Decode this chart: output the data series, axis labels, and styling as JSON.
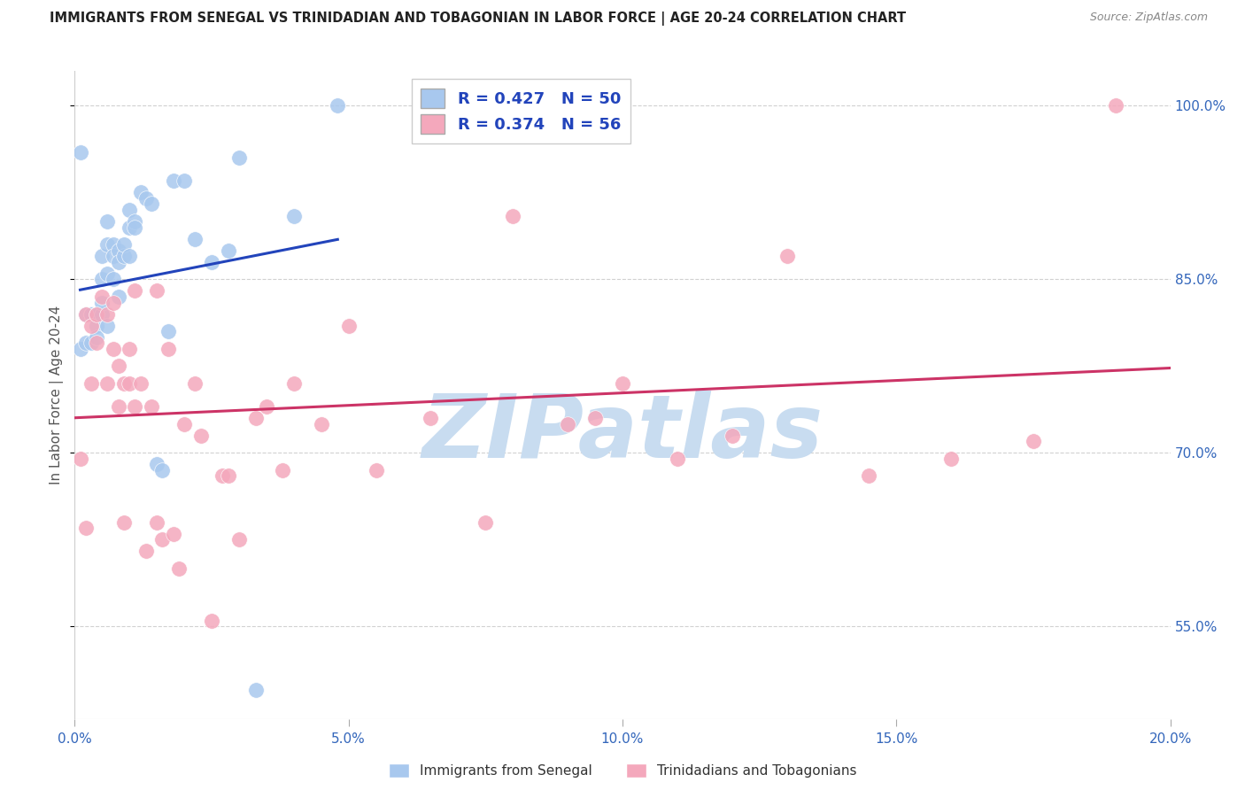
{
  "title": "IMMIGRANTS FROM SENEGAL VS TRINIDADIAN AND TOBAGONIAN IN LABOR FORCE | AGE 20-24 CORRELATION CHART",
  "source": "Source: ZipAtlas.com",
  "ylabel": "In Labor Force | Age 20-24",
  "legend_label_blue": "Immigrants from Senegal",
  "legend_label_pink": "Trinidadians and Tobagonians",
  "R_blue": 0.427,
  "N_blue": 50,
  "R_pink": 0.374,
  "N_pink": 56,
  "xlim": [
    0.0,
    0.2
  ],
  "ylim": [
    0.47,
    1.03
  ],
  "xticks": [
    0.0,
    0.05,
    0.1,
    0.15,
    0.2
  ],
  "yticks": [
    0.55,
    0.7,
    0.85,
    1.0
  ],
  "xticklabels": [
    "0.0%",
    "5.0%",
    "10.0%",
    "15.0%",
    "20.0%"
  ],
  "yticklabels": [
    "55.0%",
    "70.0%",
    "85.0%",
    "100.0%"
  ],
  "color_blue": "#A8C8EE",
  "color_pink": "#F4A8BC",
  "line_color_blue": "#2244BB",
  "line_color_pink": "#CC3366",
  "watermark_text": "ZIPatlas",
  "watermark_color": "#C8DCF0",
  "blue_x": [
    0.001,
    0.001,
    0.002,
    0.002,
    0.003,
    0.003,
    0.003,
    0.003,
    0.003,
    0.004,
    0.004,
    0.004,
    0.004,
    0.004,
    0.005,
    0.005,
    0.005,
    0.005,
    0.006,
    0.006,
    0.006,
    0.006,
    0.007,
    0.007,
    0.007,
    0.008,
    0.008,
    0.008,
    0.009,
    0.009,
    0.01,
    0.01,
    0.01,
    0.011,
    0.011,
    0.012,
    0.013,
    0.014,
    0.015,
    0.016,
    0.017,
    0.018,
    0.02,
    0.022,
    0.025,
    0.028,
    0.03,
    0.033,
    0.04,
    0.048
  ],
  "blue_y": [
    0.96,
    0.79,
    0.82,
    0.795,
    0.82,
    0.82,
    0.82,
    0.82,
    0.795,
    0.82,
    0.82,
    0.82,
    0.81,
    0.8,
    0.82,
    0.87,
    0.85,
    0.83,
    0.9,
    0.88,
    0.855,
    0.81,
    0.88,
    0.87,
    0.85,
    0.875,
    0.865,
    0.835,
    0.87,
    0.88,
    0.895,
    0.91,
    0.87,
    0.9,
    0.895,
    0.925,
    0.92,
    0.915,
    0.69,
    0.685,
    0.805,
    0.935,
    0.935,
    0.885,
    0.865,
    0.875,
    0.955,
    0.495,
    0.905,
    1.0
  ],
  "pink_x": [
    0.001,
    0.002,
    0.002,
    0.003,
    0.003,
    0.004,
    0.004,
    0.005,
    0.006,
    0.006,
    0.007,
    0.007,
    0.008,
    0.008,
    0.009,
    0.009,
    0.01,
    0.01,
    0.011,
    0.011,
    0.012,
    0.013,
    0.014,
    0.015,
    0.015,
    0.016,
    0.017,
    0.018,
    0.019,
    0.02,
    0.022,
    0.023,
    0.025,
    0.027,
    0.028,
    0.03,
    0.033,
    0.035,
    0.038,
    0.04,
    0.045,
    0.05,
    0.055,
    0.065,
    0.075,
    0.08,
    0.09,
    0.095,
    0.1,
    0.11,
    0.12,
    0.13,
    0.145,
    0.16,
    0.175,
    0.19
  ],
  "pink_y": [
    0.695,
    0.82,
    0.635,
    0.81,
    0.76,
    0.82,
    0.795,
    0.835,
    0.82,
    0.76,
    0.79,
    0.83,
    0.74,
    0.775,
    0.64,
    0.76,
    0.76,
    0.79,
    0.74,
    0.84,
    0.76,
    0.615,
    0.74,
    0.64,
    0.84,
    0.625,
    0.79,
    0.63,
    0.6,
    0.725,
    0.76,
    0.715,
    0.555,
    0.68,
    0.68,
    0.625,
    0.73,
    0.74,
    0.685,
    0.76,
    0.725,
    0.81,
    0.685,
    0.73,
    0.64,
    0.905,
    0.725,
    0.73,
    0.76,
    0.695,
    0.715,
    0.87,
    0.68,
    0.695,
    0.71,
    1.0
  ],
  "blue_line_x0": 0.001,
  "blue_line_x1": 0.048,
  "pink_line_x0": 0.0,
  "pink_line_x1": 0.2
}
